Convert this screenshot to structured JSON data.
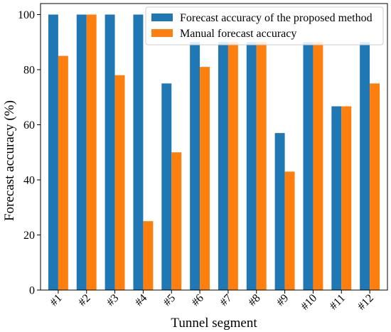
{
  "chart_data": {
    "type": "bar",
    "title": "",
    "xlabel": "Tunnel segment",
    "ylabel": "Forecast accuracy (%)",
    "ylim": [
      0,
      104
    ],
    "yticks": [
      0,
      20,
      40,
      60,
      80,
      100
    ],
    "grid": false,
    "legend_position": "top-right",
    "categories": [
      "#1",
      "#2",
      "#3",
      "#4",
      "#5",
      "#6",
      "#7",
      "#8",
      "#9",
      "#10",
      "#11",
      "#12"
    ],
    "series": [
      {
        "name": "Forecast accuracy of the proposed method",
        "color": "#1f77b4",
        "values": [
          100,
          100,
          100,
          100,
          75,
          90,
          90,
          90,
          57,
          90,
          66.7,
          90
        ]
      },
      {
        "name": "Manual forecast accuracy",
        "color": "#ff7f0e",
        "values": [
          85,
          100,
          78,
          25,
          50,
          81,
          90,
          90,
          43,
          90,
          66.7,
          75
        ]
      }
    ]
  }
}
